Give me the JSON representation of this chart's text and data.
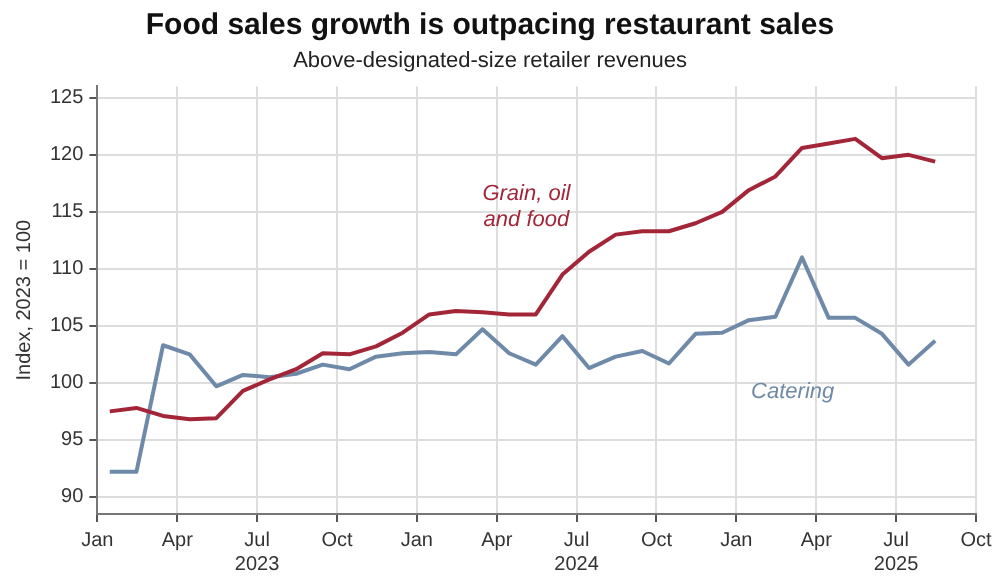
{
  "chart_data": {
    "type": "line",
    "title": "Food sales growth is outpacing restaurant sales",
    "subtitle": "Above-designated-size retailer revenues",
    "ylabel": "Index, 2023 = 100",
    "x": [
      "2023-01-15",
      "2023-02-15",
      "2023-03-15",
      "2023-04-15",
      "2023-05-15",
      "2023-06-15",
      "2023-07-15",
      "2023-08-15",
      "2023-09-15",
      "2023-10-15",
      "2023-11-15",
      "2023-12-15",
      "2024-01-15",
      "2024-02-15",
      "2024-03-15",
      "2024-04-15",
      "2024-05-15",
      "2024-06-15",
      "2024-07-15",
      "2024-08-15",
      "2024-09-15",
      "2024-10-15",
      "2024-11-15",
      "2024-12-15",
      "2025-01-15",
      "2025-02-15",
      "2025-03-15",
      "2025-04-15",
      "2025-05-15",
      "2025-06-15",
      "2025-07-15",
      "2025-08-15"
    ],
    "series": [
      {
        "name": "Grain, oil and food",
        "color": "#a32638",
        "values": [
          97.5,
          97.8,
          97.1,
          96.8,
          96.9,
          99.3,
          100.3,
          101.2,
          102.6,
          102.5,
          103.2,
          104.4,
          106.0,
          106.3,
          106.2,
          106.0,
          106.0,
          109.5,
          111.5,
          113.0,
          113.3,
          113.3,
          114.0,
          115.0,
          116.9,
          118.1,
          120.6,
          121.0,
          121.4,
          119.7,
          120.0,
          119.4
        ]
      },
      {
        "name": "Catering",
        "color": "#6f8aa8",
        "values": [
          92.2,
          92.2,
          103.3,
          102.5,
          99.7,
          100.7,
          100.5,
          100.8,
          101.6,
          101.2,
          102.3,
          102.6,
          102.7,
          102.5,
          104.7,
          102.6,
          101.6,
          104.1,
          101.3,
          102.3,
          102.8,
          101.7,
          104.3,
          104.4,
          105.5,
          105.8,
          111.0,
          105.7,
          105.7,
          104.3,
          101.6,
          103.7
        ]
      }
    ],
    "xlim": [
      "2023-01",
      "2025-10"
    ],
    "xticks": [
      {
        "value": "2023-01",
        "label": "Jan"
      },
      {
        "value": "2023-04",
        "label": "Apr"
      },
      {
        "value": "2023-07",
        "label": "Jul 2023"
      },
      {
        "value": "2023-10",
        "label": "Oct"
      },
      {
        "value": "2024-01",
        "label": "Jan"
      },
      {
        "value": "2024-04",
        "label": "Apr"
      },
      {
        "value": "2024-07",
        "label": "Jul 2024"
      },
      {
        "value": "2024-10",
        "label": "Oct"
      },
      {
        "value": "2025-01",
        "label": "Jan"
      },
      {
        "value": "2025-04",
        "label": "Apr"
      },
      {
        "value": "2025-07",
        "label": "Jul 2025"
      },
      {
        "value": "2025-10",
        "label": "Oct"
      }
    ],
    "ylim": [
      88.5,
      126
    ],
    "yticks": [
      90,
      95,
      100,
      105,
      110,
      115,
      120,
      125
    ],
    "grid": true,
    "legend": false,
    "marker": "none",
    "line_style": "solid"
  }
}
